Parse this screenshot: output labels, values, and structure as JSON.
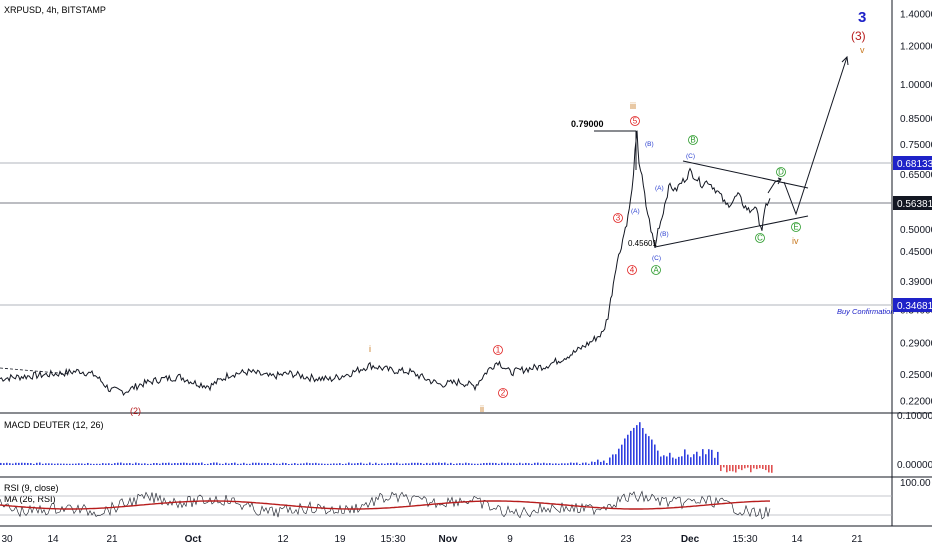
{
  "symbol_header": "XRPUSD, 4h, BITSTAMP",
  "colors": {
    "price_line": "#131722",
    "grid_level": "#9598a1",
    "label_bg": "#1e22c8",
    "wave_red": "#e02020",
    "wave_orange": "#c8781e",
    "wave_blue": "#2a3fd0",
    "wave_green": "#2a9a2a",
    "macd_pos": "#2f3fe0",
    "macd_neg": "#e05050",
    "rsi_ma": "#b71c1c"
  },
  "chart_data": {
    "type": "line",
    "symbol": "XRPUSD",
    "interval": "4h",
    "exchange": "BITSTAMP",
    "price_axis_ticks": [
      "1.40000",
      "1.20000",
      "1.00000",
      "0.85000",
      "0.75000",
      "0.65000",
      "0.56000",
      "0.50000",
      "0.45000",
      "0.39000",
      "0.34000",
      "0.29000",
      "0.25000",
      "0.22000"
    ],
    "time_axis_ticks": [
      "30",
      "14",
      "21",
      "Oct",
      "12",
      "19",
      "15:30",
      "Nov",
      "9",
      "16",
      "23",
      "Dec",
      "15:30",
      "14",
      "21"
    ],
    "price_series": [
      [
        0,
        0.245
      ],
      [
        20,
        0.247
      ],
      [
        40,
        0.249
      ],
      [
        60,
        0.251
      ],
      [
        80,
        0.254
      ],
      [
        95,
        0.249
      ],
      [
        110,
        0.232
      ],
      [
        125,
        0.23
      ],
      [
        140,
        0.238
      ],
      [
        160,
        0.244
      ],
      [
        180,
        0.247
      ],
      [
        195,
        0.24
      ],
      [
        210,
        0.236
      ],
      [
        230,
        0.25
      ],
      [
        250,
        0.253
      ],
      [
        270,
        0.247
      ],
      [
        290,
        0.251
      ],
      [
        310,
        0.246
      ],
      [
        330,
        0.244
      ],
      [
        350,
        0.251
      ],
      [
        370,
        0.261
      ],
      [
        390,
        0.255
      ],
      [
        410,
        0.253
      ],
      [
        425,
        0.245
      ],
      [
        440,
        0.238
      ],
      [
        460,
        0.241
      ],
      [
        475,
        0.236
      ],
      [
        488,
        0.255
      ],
      [
        498,
        0.266
      ],
      [
        510,
        0.252
      ],
      [
        525,
        0.256
      ],
      [
        545,
        0.26
      ],
      [
        560,
        0.268
      ],
      [
        575,
        0.278
      ],
      [
        590,
        0.291
      ],
      [
        603,
        0.305
      ],
      [
        608,
        0.33
      ],
      [
        612,
        0.37
      ],
      [
        616,
        0.42
      ],
      [
        620,
        0.45
      ],
      [
        624,
        0.49
      ],
      [
        628,
        0.53
      ],
      [
        632,
        0.6
      ],
      [
        635,
        0.72
      ],
      [
        637,
        0.79
      ],
      [
        639,
        0.69
      ],
      [
        642,
        0.64
      ],
      [
        646,
        0.56
      ],
      [
        651,
        0.5
      ],
      [
        655,
        0.456
      ],
      [
        658,
        0.5
      ],
      [
        662,
        0.53
      ],
      [
        666,
        0.58
      ],
      [
        670,
        0.62
      ],
      [
        675,
        0.6
      ],
      [
        680,
        0.62
      ],
      [
        686,
        0.64
      ],
      [
        690,
        0.66
      ],
      [
        696,
        0.64
      ],
      [
        702,
        0.62
      ],
      [
        708,
        0.63
      ],
      [
        714,
        0.61
      ],
      [
        720,
        0.59
      ],
      [
        726,
        0.56
      ],
      [
        732,
        0.57
      ],
      [
        738,
        0.59
      ],
      [
        744,
        0.56
      ],
      [
        750,
        0.545
      ],
      [
        755,
        0.56
      ],
      [
        758,
        0.53
      ],
      [
        762,
        0.5
      ],
      [
        766,
        0.56
      ],
      [
        770,
        0.58
      ]
    ],
    "horizontal_levels": [
      {
        "value": "0.68133",
        "label": "0.68133"
      },
      {
        "value": "0.56381",
        "label": "0.56381"
      },
      {
        "value": "0.34681",
        "label": "0.34681"
      }
    ],
    "annotations": {
      "high_label": "0.79000",
      "low_label": "0.45601",
      "buy_confirmation": "Buy Confirmation",
      "wave_degree": "3",
      "wave_3_paren": "(3)",
      "wave_v": "v",
      "wave_i": "i",
      "wave_ii": "ii",
      "wave_iii": "iii",
      "wave_iv": "iv",
      "wave_2_paren": "(2)",
      "circled": {
        "c1": "1",
        "c2": "2",
        "c3": "3",
        "c4": "4",
        "c5": "5",
        "A": "A",
        "B": "B",
        "C": "C",
        "D": "D",
        "E": "E"
      },
      "paren": {
        "A1": "(A)",
        "B1": "(B)",
        "C1": "(C)",
        "A2": "(A)",
        "B2": "(B)",
        "C2": "(C)"
      }
    },
    "macd_panel": {
      "title": "MACD DEUTER (12, 26)",
      "ticks": [
        "0.10000",
        "0.00000"
      ]
    },
    "rsi_panel": {
      "title": "RSI (9, close)",
      "subtitle": "MA (26, RSI)",
      "ticks": [
        "100.00"
      ]
    }
  }
}
